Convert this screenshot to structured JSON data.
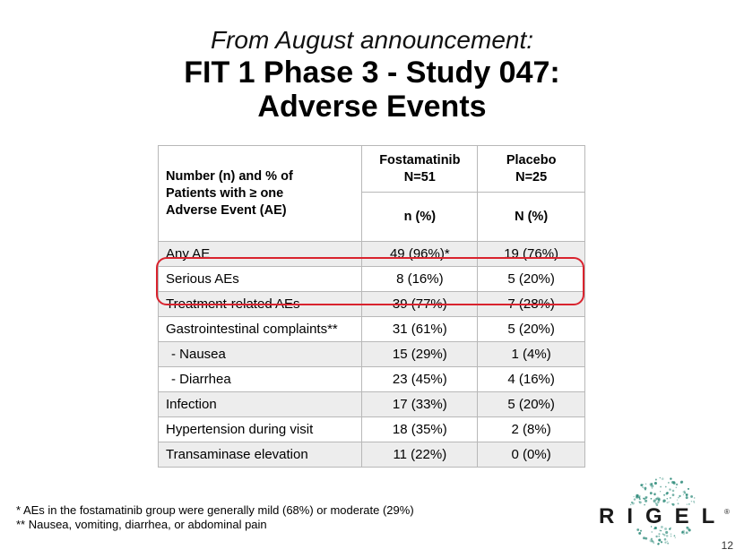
{
  "header": {
    "subtitle": "From August announcement:",
    "title_line1": "FIT 1 Phase 3 - Study 047:",
    "title_line2": "Adverse Events"
  },
  "table": {
    "row_header": [
      "Number (n) and % of",
      "Patients with ≥ one",
      "Adverse Event (AE)"
    ],
    "col1_title": [
      "Fostamatinib",
      "N=51"
    ],
    "col2_title": [
      "Placebo",
      "N=25"
    ],
    "col1_sub": "n (%)",
    "col2_sub": "N (%)",
    "rows": [
      {
        "label": "Any AE",
        "fosta": "49 (96%)*",
        "placebo": "19 (76%)"
      },
      {
        "label": "Serious AEs",
        "fosta": "8 (16%)",
        "placebo": "5 (20%)"
      },
      {
        "label": "Treatment-related AEs",
        "fosta": "39 (77%)",
        "placebo": "7 (28%)"
      },
      {
        "label": "Gastrointestinal complaints**",
        "fosta": "31 (61%)",
        "placebo": "5 (20%)"
      },
      {
        "label": "- Nausea",
        "fosta": "15 (29%)",
        "placebo": "1 (4%)"
      },
      {
        "label": "- Diarrhea",
        "fosta": "23 (45%)",
        "placebo": "4 (16%)"
      },
      {
        "label": "Infection",
        "fosta": "17 (33%)",
        "placebo": "5 (20%)"
      },
      {
        "label": "Hypertension during visit",
        "fosta": "18 (35%)",
        "placebo": "2 (8%)"
      },
      {
        "label": "Transaminase elevation",
        "fosta": "11 (22%)",
        "placebo": "0 (0%)"
      }
    ]
  },
  "footnotes": [
    "* AEs in the fostamatinib group were generally mild (68%) or moderate (29%)",
    "** Nausea, vomiting, diarrhea, or abdominal pain"
  ],
  "logo": {
    "text": "RIGEL",
    "mark": "®",
    "dot_color": "#2e8b7a"
  },
  "page_number": "12",
  "colors": {
    "highlight": "#d9232e",
    "shade": "#ededed"
  }
}
